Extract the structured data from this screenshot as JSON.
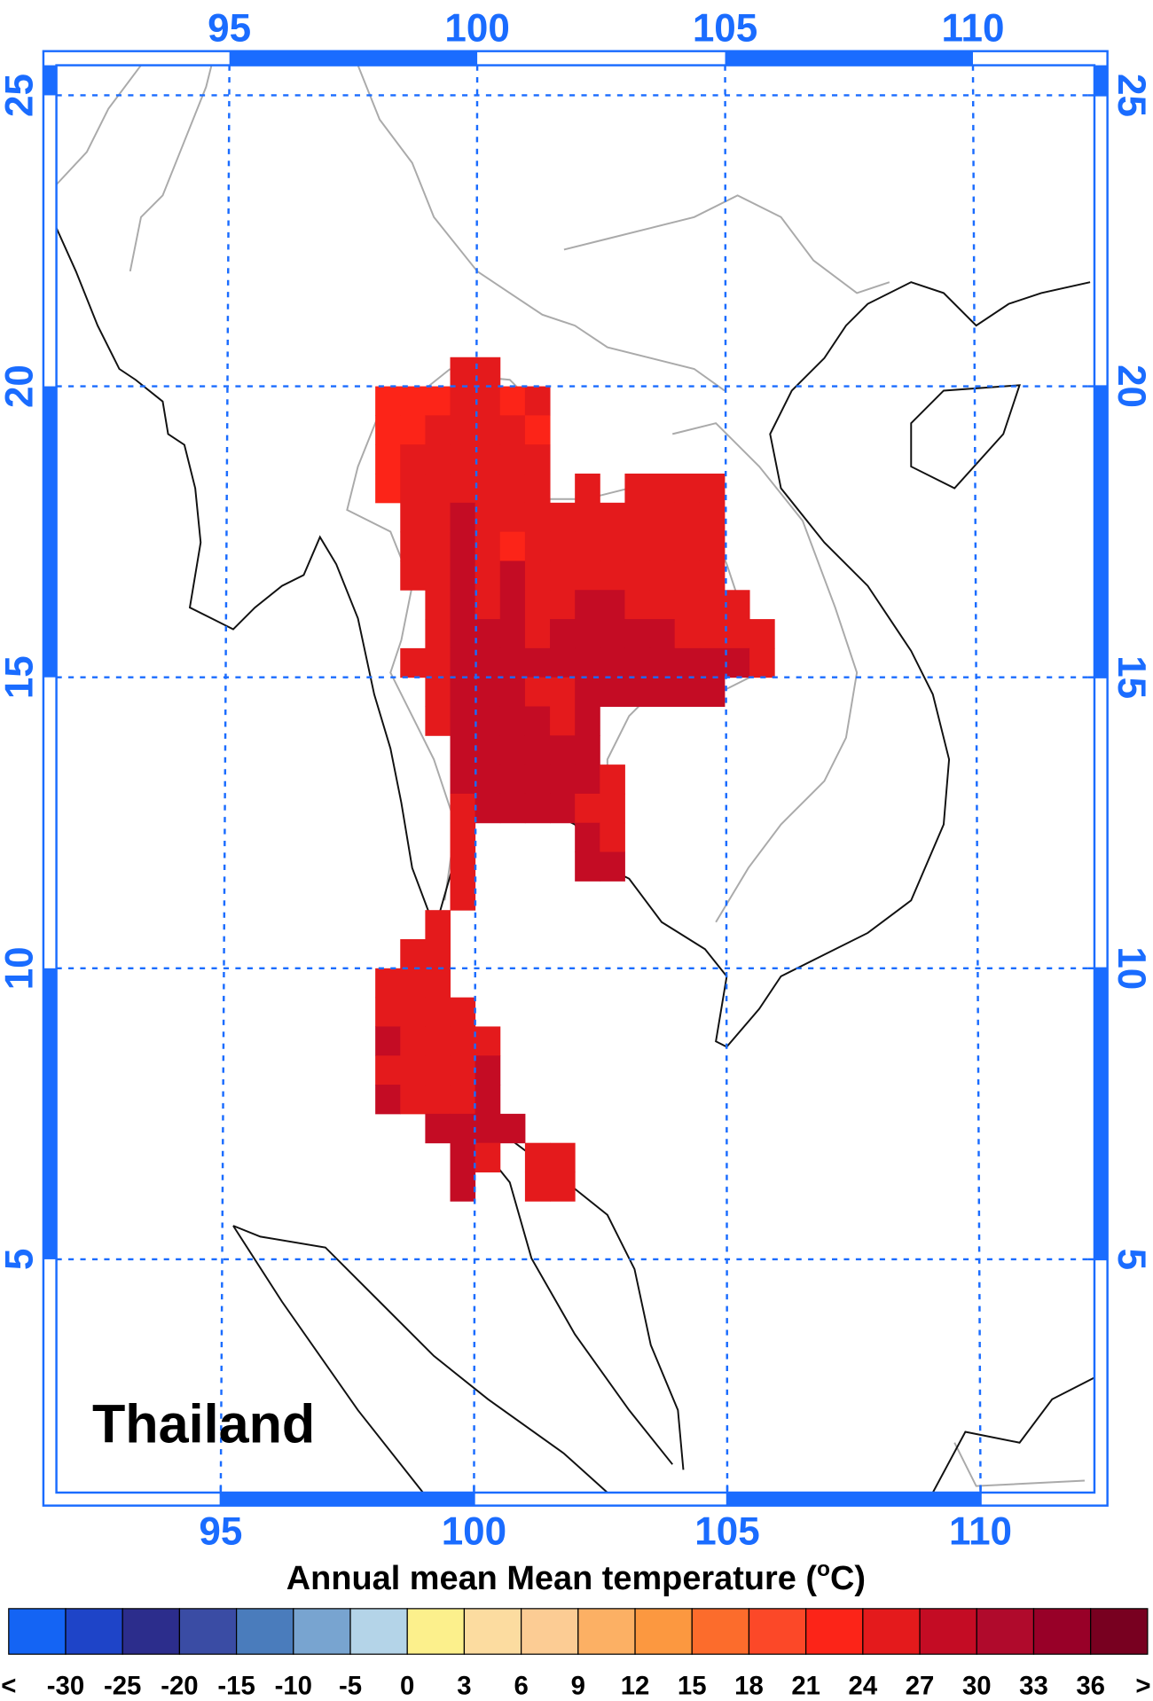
{
  "title": "Thailand",
  "axes": {
    "top_lon_ticks": [
      95,
      100,
      105,
      110
    ],
    "bottom_lon_ticks": [
      95,
      100,
      105,
      110
    ],
    "left_lat_ticks": [
      5,
      10,
      15,
      20,
      25
    ],
    "right_lat_ticks": [
      5,
      10,
      15,
      20,
      25
    ]
  },
  "grid": {
    "rows": [
      {
        "lat": 20.0,
        "lon": 99.5,
        "values": [
          25.5,
          25.5
        ]
      },
      {
        "lat": 19.5,
        "lon": 98.0,
        "values": [
          22.5,
          22.5,
          22.5,
          25.5,
          25.5,
          22.5,
          25.5
        ]
      },
      {
        "lat": 19.0,
        "lon": 98.0,
        "values": [
          22.5,
          22.5,
          25.5,
          25.5,
          25.5,
          25.5,
          22.5
        ]
      },
      {
        "lat": 18.5,
        "lon": 98.0,
        "values": [
          22.5,
          25.5,
          25.5,
          25.5,
          25.5,
          25.5,
          25.5
        ]
      },
      {
        "lat": 18.0,
        "lon": 98.0,
        "values": [
          22.5,
          25.5,
          25.5,
          25.5,
          25.5,
          25.5,
          25.5,
          null,
          25.5,
          null,
          25.5,
          25.5,
          25.5,
          25.5
        ]
      },
      {
        "lat": 17.5,
        "lon": 98.5,
        "values": [
          25.5,
          25.5,
          28.5,
          25.5,
          25.5,
          25.5,
          25.5,
          25.5,
          25.5,
          25.5,
          25.5,
          25.5,
          25.5
        ]
      },
      {
        "lat": 17.0,
        "lon": 98.5,
        "values": [
          25.5,
          25.5,
          28.5,
          25.5,
          22.5,
          25.5,
          25.5,
          25.5,
          25.5,
          25.5,
          25.5,
          25.5,
          25.5
        ]
      },
      {
        "lat": 16.5,
        "lon": 98.5,
        "values": [
          25.5,
          25.5,
          28.5,
          25.5,
          28.5,
          25.5,
          25.5,
          25.5,
          25.5,
          25.5,
          25.5,
          25.5,
          25.5
        ]
      },
      {
        "lat": 16.0,
        "lon": 99.0,
        "values": [
          25.5,
          28.5,
          25.5,
          28.5,
          25.5,
          25.5,
          28.5,
          28.5,
          25.5,
          25.5,
          25.5,
          25.5,
          25.5
        ]
      },
      {
        "lat": 15.5,
        "lon": 99.0,
        "values": [
          25.5,
          28.5,
          28.5,
          28.5,
          25.5,
          28.5,
          28.5,
          28.5,
          28.5,
          28.5,
          25.5,
          25.5,
          25.5,
          25.5
        ]
      },
      {
        "lat": 15.0,
        "lon": 98.5,
        "values": [
          25.5,
          25.5,
          28.5,
          28.5,
          28.5,
          28.5,
          28.5,
          28.5,
          28.5,
          28.5,
          28.5,
          28.5,
          28.5,
          28.5,
          25.5
        ]
      },
      {
        "lat": 14.5,
        "lon": 99.0,
        "values": [
          25.5,
          28.5,
          28.5,
          28.5,
          25.5,
          25.5,
          28.5,
          28.5,
          28.5,
          28.5,
          28.5,
          28.5
        ]
      },
      {
        "lat": 14.0,
        "lon": 99.0,
        "values": [
          25.5,
          28.5,
          28.5,
          28.5,
          28.5,
          25.5,
          28.5
        ]
      },
      {
        "lat": 13.5,
        "lon": 99.5,
        "values": [
          28.5,
          28.5,
          28.5,
          28.5,
          28.5,
          28.5
        ]
      },
      {
        "lat": 13.0,
        "lon": 99.5,
        "values": [
          28.5,
          28.5,
          28.5,
          28.5,
          28.5,
          28.5,
          25.5
        ]
      },
      {
        "lat": 12.5,
        "lon": 99.5,
        "values": [
          25.5,
          28.5,
          28.5,
          28.5,
          28.5,
          25.5,
          25.5
        ]
      },
      {
        "lat": 12.0,
        "lon": 99.5,
        "values": [
          25.5,
          null,
          null,
          null,
          null,
          28.5,
          25.5
        ]
      },
      {
        "lat": 11.5,
        "lon": 99.5,
        "values": [
          25.5,
          null,
          null,
          null,
          null,
          28.5,
          28.5
        ]
      },
      {
        "lat": 11.0,
        "lon": 99.5,
        "values": [
          25.5
        ]
      },
      {
        "lat": 10.5,
        "lon": 99.0,
        "values": [
          25.5
        ]
      },
      {
        "lat": 10.0,
        "lon": 98.5,
        "values": [
          25.5,
          25.5
        ]
      },
      {
        "lat": 9.5,
        "lon": 98.0,
        "values": [
          25.5,
          25.5,
          25.5
        ]
      },
      {
        "lat": 9.0,
        "lon": 98.0,
        "values": [
          25.5,
          25.5,
          25.5,
          25.5
        ]
      },
      {
        "lat": 8.5,
        "lon": 98.0,
        "values": [
          28.5,
          25.5,
          25.5,
          25.5,
          25.5
        ]
      },
      {
        "lat": 8.0,
        "lon": 98.0,
        "values": [
          25.5,
          25.5,
          25.5,
          25.5,
          28.5
        ]
      },
      {
        "lat": 7.5,
        "lon": 98.0,
        "values": [
          28.5,
          25.5,
          25.5,
          25.5,
          28.5
        ]
      },
      {
        "lat": 7.0,
        "lon": 99.0,
        "values": [
          28.5,
          28.5,
          28.5,
          28.5
        ]
      },
      {
        "lat": 6.5,
        "lon": 99.5,
        "values": [
          28.5,
          25.5,
          null,
          25.5,
          25.5
        ]
      },
      {
        "lat": 6.0,
        "lon": 99.5,
        "values": [
          28.5,
          null,
          null,
          25.5,
          25.5
        ]
      }
    ]
  },
  "colorbar": {
    "title_prefix": "Annual mean Mean temperature (",
    "title_superscript": "o",
    "title_suffix": "C)",
    "below_label": "<",
    "above_label": ">",
    "levels": [
      -30,
      -25,
      -20,
      -15,
      -10,
      -5,
      0,
      3,
      6,
      9,
      12,
      15,
      18,
      21,
      24,
      27,
      30,
      33,
      36
    ],
    "colors": [
      "#1464f4",
      "#1e44c8",
      "#2c2d8c",
      "#3a4ca4",
      "#4a7cbc",
      "#78a4d0",
      "#b4d4e8",
      "#fcf08c",
      "#fcdca0",
      "#fccc94",
      "#fcb064",
      "#fc9840",
      "#fc6c2c",
      "#fc4828",
      "#fc2418",
      "#e41a1c",
      "#c40c24",
      "#b00a2c",
      "#980028",
      "#780020"
    ]
  }
}
